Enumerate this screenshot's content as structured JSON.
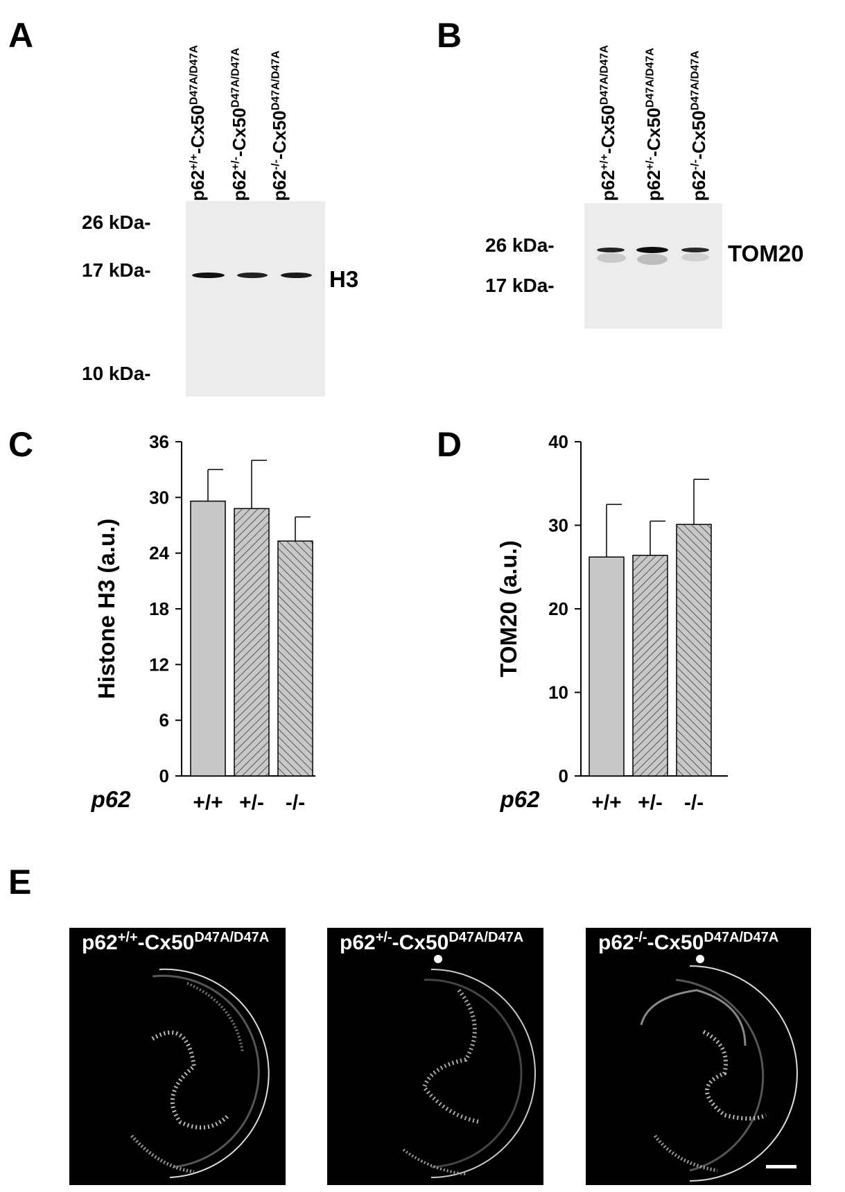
{
  "panel_a": {
    "letter": "A",
    "lanes": [
      {
        "prefix": "p62",
        "sup1": "+/+",
        "mid": "-Cx50",
        "sup2": "D47A/D47A"
      },
      {
        "prefix": "p62",
        "sup1": "+/-",
        "mid": "-Cx50",
        "sup2": "D47A/D47A"
      },
      {
        "prefix": "p62",
        "sup1": "-/-",
        "mid": "-Cx50",
        "sup2": "D47A/D47A"
      }
    ],
    "markers": [
      "26 kDa-",
      "17 kDa-",
      "10 kDa-"
    ],
    "protein": "H3"
  },
  "panel_b": {
    "letter": "B",
    "lanes": [
      {
        "prefix": "p62",
        "sup1": "+/+",
        "mid": "-Cx50",
        "sup2": "D47A/D47A"
      },
      {
        "prefix": "p62",
        "sup1": "+/-",
        "mid": "-Cx50",
        "sup2": "D47A/D47A"
      },
      {
        "prefix": "p62",
        "sup1": "-/-",
        "mid": "-Cx50",
        "sup2": "D47A/D47A"
      }
    ],
    "markers": [
      "26 kDa-",
      "17 kDa-"
    ],
    "protein": "TOM20"
  },
  "panel_c": {
    "letter": "C"
  },
  "panel_d": {
    "letter": "D"
  },
  "panel_e": {
    "letter": "E",
    "images": [
      {
        "prefix": "p62",
        "sup1": "+/+",
        "mid": "-Cx50",
        "sup2": "D47A/D47A"
      },
      {
        "prefix": "p62",
        "sup1": "+/-",
        "mid": "-Cx50",
        "sup2": "D47A/D47A"
      },
      {
        "prefix": "p62",
        "sup1": "-/-",
        "mid": "-Cx50",
        "sup2": "D47A/D47A"
      }
    ]
  },
  "chart_data": [
    {
      "type": "bar",
      "panel": "C",
      "title": "",
      "ylabel": "Histone H3 (a.u.)",
      "xlabel": "p62",
      "categories": [
        "+/+",
        "+/-",
        "-/-"
      ],
      "values": [
        29.6,
        28.8,
        25.3
      ],
      "errors": [
        3.4,
        5.2,
        2.6
      ],
      "ylim": [
        0,
        36
      ],
      "yticks": [
        0,
        6,
        12,
        18,
        24,
        30,
        36
      ],
      "fills": [
        "solid-gray",
        "hatch-forward",
        "hatch-back"
      ],
      "bar_color": "#c8c8c8",
      "grid": false
    },
    {
      "type": "bar",
      "panel": "D",
      "title": "",
      "ylabel": "TOM20 (a.u.)",
      "xlabel": "p62",
      "categories": [
        "+/+",
        "+/-",
        "-/-"
      ],
      "values": [
        26.2,
        26.4,
        30.1
      ],
      "errors": [
        6.3,
        4.1,
        5.4
      ],
      "ylim": [
        0,
        40
      ],
      "yticks": [
        0,
        10,
        20,
        30,
        40
      ],
      "fills": [
        "solid-gray",
        "hatch-forward",
        "hatch-back"
      ],
      "bar_color": "#c8c8c8",
      "grid": false
    }
  ]
}
